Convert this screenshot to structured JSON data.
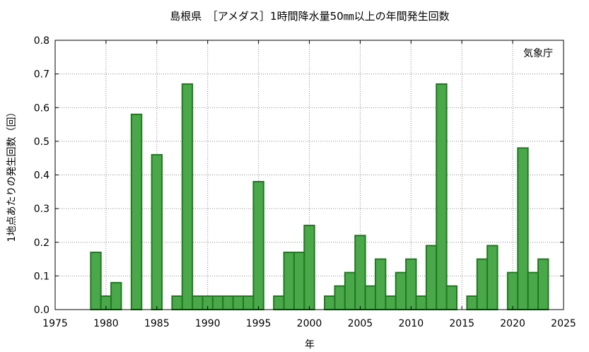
{
  "chart_data": {
    "type": "bar",
    "title": "島根県　［アメダス］1時間降水量50㎜以上の年間発生回数",
    "xlabel": "年",
    "ylabel": "1地点あたりの発生回数（回）",
    "credit": "気象庁",
    "xlim": [
      1975,
      2025
    ],
    "ylim": [
      0,
      0.8
    ],
    "grid": true,
    "bar_color": "#4aa84a",
    "bar_edge_color": "#1f7a1f",
    "x_ticks": [
      1975,
      1980,
      1985,
      1990,
      1995,
      2000,
      2005,
      2010,
      2015,
      2020,
      2025
    ],
    "y_ticks": [
      "0.0",
      "0.1",
      "0.2",
      "0.3",
      "0.4",
      "0.5",
      "0.6",
      "0.7",
      "0.8"
    ],
    "x": [
      1979,
      1980,
      1981,
      1983,
      1985,
      1987,
      1988,
      1989,
      1990,
      1991,
      1992,
      1993,
      1994,
      1995,
      1997,
      1998,
      1999,
      2000,
      2002,
      2003,
      2004,
      2005,
      2006,
      2007,
      2008,
      2009,
      2010,
      2011,
      2012,
      2013,
      2014,
      2016,
      2017,
      2018,
      2020,
      2021,
      2022,
      2023
    ],
    "values": [
      0.17,
      0.04,
      0.08,
      0.58,
      0.46,
      0.04,
      0.67,
      0.04,
      0.04,
      0.04,
      0.04,
      0.04,
      0.04,
      0.38,
      0.04,
      0.17,
      0.17,
      0.25,
      0.04,
      0.07,
      0.11,
      0.22,
      0.07,
      0.15,
      0.04,
      0.11,
      0.15,
      0.04,
      0.19,
      0.67,
      0.07,
      0.04,
      0.15,
      0.19,
      0.11,
      0.48,
      0.11,
      0.15
    ]
  }
}
